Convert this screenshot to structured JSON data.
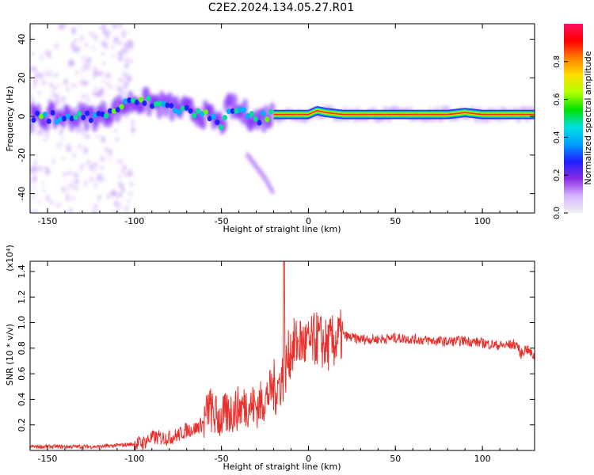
{
  "title": "C2E2.2024.134.05.27.R01",
  "chart_data": [
    {
      "type": "heatmap",
      "xlabel": "Height of straight line (km)",
      "ylabel": "Frequency (Hz)",
      "xlim": [
        -160,
        130
      ],
      "ylim": [
        -50,
        48
      ],
      "xticks": [
        -150,
        -100,
        -50,
        0,
        50,
        100
      ],
      "yticks": [
        -40,
        -20,
        0,
        20,
        40
      ],
      "colorbar": {
        "label": "Normalized spectral amplitude",
        "range": [
          0.0,
          1.0
        ],
        "ticks": [
          "0.0",
          "0.2",
          "0.4",
          "0.6",
          "0.8"
        ],
        "colors": [
          "#f2f2f2",
          "#d6b3ff",
          "#8a2be2",
          "#1f1fff",
          "#00a0ff",
          "#00e0e0",
          "#00e000",
          "#b0ff00",
          "#ffe000",
          "#ff8000",
          "#ff0000",
          "#ff1060"
        ]
      },
      "ridge": {
        "x": [
          -160,
          -140,
          -120,
          -100,
          -90,
          -80,
          -70,
          -60,
          -50,
          -45,
          -40,
          -35,
          -30,
          -20,
          -10,
          0,
          5,
          10,
          20,
          40,
          60,
          80,
          90,
          100,
          130
        ],
        "y": [
          -1,
          0,
          0,
          8,
          7,
          5,
          3,
          1,
          -4,
          6,
          2,
          1,
          -2,
          1,
          1,
          1,
          3,
          2,
          1,
          1,
          1,
          1,
          2,
          1,
          1
        ]
      },
      "branch": {
        "x": [
          -35,
          -30,
          -25,
          -20
        ],
        "y": [
          -20,
          -26,
          -32,
          -40
        ]
      }
    },
    {
      "type": "line",
      "xlabel": "Height of straight line (km)",
      "ylabel": "SNR (10 * v/v)",
      "yunit": "(x10⁴)",
      "xlim": [
        -160,
        130
      ],
      "ylim": [
        0,
        1.48
      ],
      "xticks": [
        -150,
        -100,
        -50,
        0,
        50,
        100
      ],
      "yticks": [
        0.2,
        0.4,
        0.6,
        0.8,
        1.0,
        1.2,
        1.4
      ],
      "color": "#e8302c",
      "series": [
        {
          "x": [
            -160,
            -140,
            -120,
            -100,
            -95,
            -90,
            -85,
            -80,
            -75,
            -70,
            -65,
            -60,
            -57,
            -55,
            -50,
            -45,
            -40,
            -35,
            -30,
            -25,
            -20,
            -18,
            -16,
            -14,
            -12,
            -10,
            -5,
            0,
            5,
            10,
            15,
            20,
            25,
            30,
            40,
            50,
            60,
            70,
            80,
            90,
            100,
            110,
            120,
            122,
            125,
            130
          ],
          "y": [
            0.03,
            0.03,
            0.03,
            0.05,
            0.06,
            0.1,
            0.1,
            0.1,
            0.12,
            0.16,
            0.17,
            0.22,
            0.35,
            0.28,
            0.25,
            0.3,
            0.33,
            0.36,
            0.34,
            0.4,
            0.5,
            0.48,
            0.55,
            0.6,
            0.7,
            0.8,
            0.85,
            0.82,
            0.88,
            0.82,
            0.85,
            0.9,
            0.88,
            0.87,
            0.87,
            0.88,
            0.87,
            0.86,
            0.85,
            0.86,
            0.84,
            0.82,
            0.83,
            0.75,
            0.8,
            0.73
          ]
        }
      ]
    }
  ]
}
